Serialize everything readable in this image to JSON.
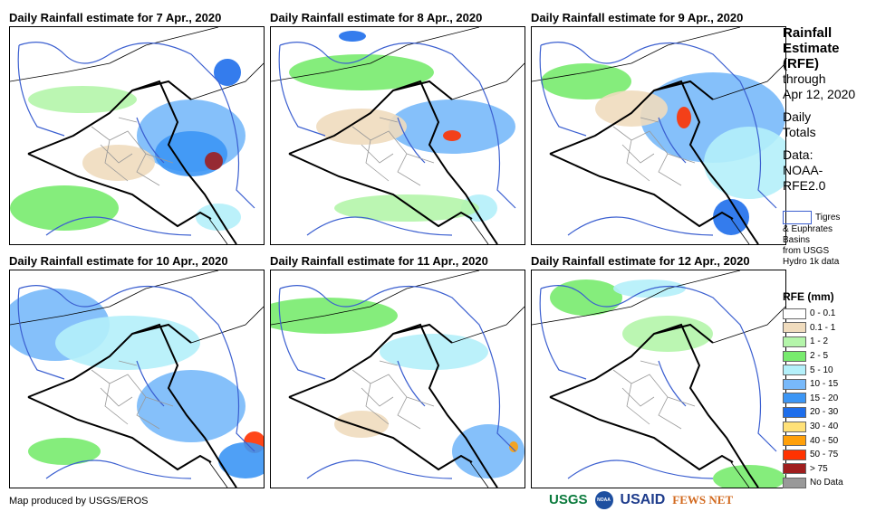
{
  "panels": [
    {
      "title": "Daily Rainfall estimate for 7 Apr., 2020"
    },
    {
      "title": "Daily Rainfall estimate for 8 Apr., 2020"
    },
    {
      "title": "Daily Rainfall estimate for 9 Apr., 2020"
    },
    {
      "title": "Daily Rainfall estimate for 10 Apr., 2020"
    },
    {
      "title": "Daily Rainfall estimate for 11 Apr., 2020"
    },
    {
      "title": "Daily Rainfall estimate for 12 Apr., 2020"
    }
  ],
  "side": {
    "l1": "Rainfall",
    "l2": "Estimate",
    "l3": "(RFE)",
    "l4": "through",
    "l5": "Apr 12, 2020",
    "l6": "Daily",
    "l7": "Totals",
    "l8": "Data:",
    "l9": "NOAA-",
    "l10": "RFE2.0"
  },
  "basin": {
    "label1": "Tigres",
    "label2": "& Euphrates",
    "label3": "Basins",
    "label4": "from USGS",
    "label5": "Hydro 1k data"
  },
  "legend": {
    "title": "RFE (mm)",
    "items": [
      {
        "label": "0 - 0.1",
        "color": "#ffffff"
      },
      {
        "label": "0.1 - 1",
        "color": "#f0dcbe"
      },
      {
        "label": "1 - 2",
        "color": "#b4f5aa"
      },
      {
        "label": "2 - 5",
        "color": "#78eb6e"
      },
      {
        "label": "5 - 10",
        "color": "#b4f0fa"
      },
      {
        "label": "10 - 15",
        "color": "#78b9fa"
      },
      {
        "label": "15 - 20",
        "color": "#3c96f5"
      },
      {
        "label": "20 - 30",
        "color": "#1e6eeb"
      },
      {
        "label": "30 - 40",
        "color": "#ffe178"
      },
      {
        "label": "40 - 50",
        "color": "#ffa00a"
      },
      {
        "label": "50 - 75",
        "color": "#ff3200"
      },
      {
        "label": "> 75",
        "color": "#a01e1e"
      },
      {
        "label": "No Data",
        "color": "#999999"
      }
    ]
  },
  "credit": "Map produced by USGS/EROS",
  "logos": {
    "usgs": "USGS",
    "usgs_tag": "science for a changing world",
    "noaa": "NOAA",
    "usaid": "USAID",
    "usaid_tag": "FROM THE AMERICAN PEOPLE",
    "fews": "FEWS NET"
  }
}
